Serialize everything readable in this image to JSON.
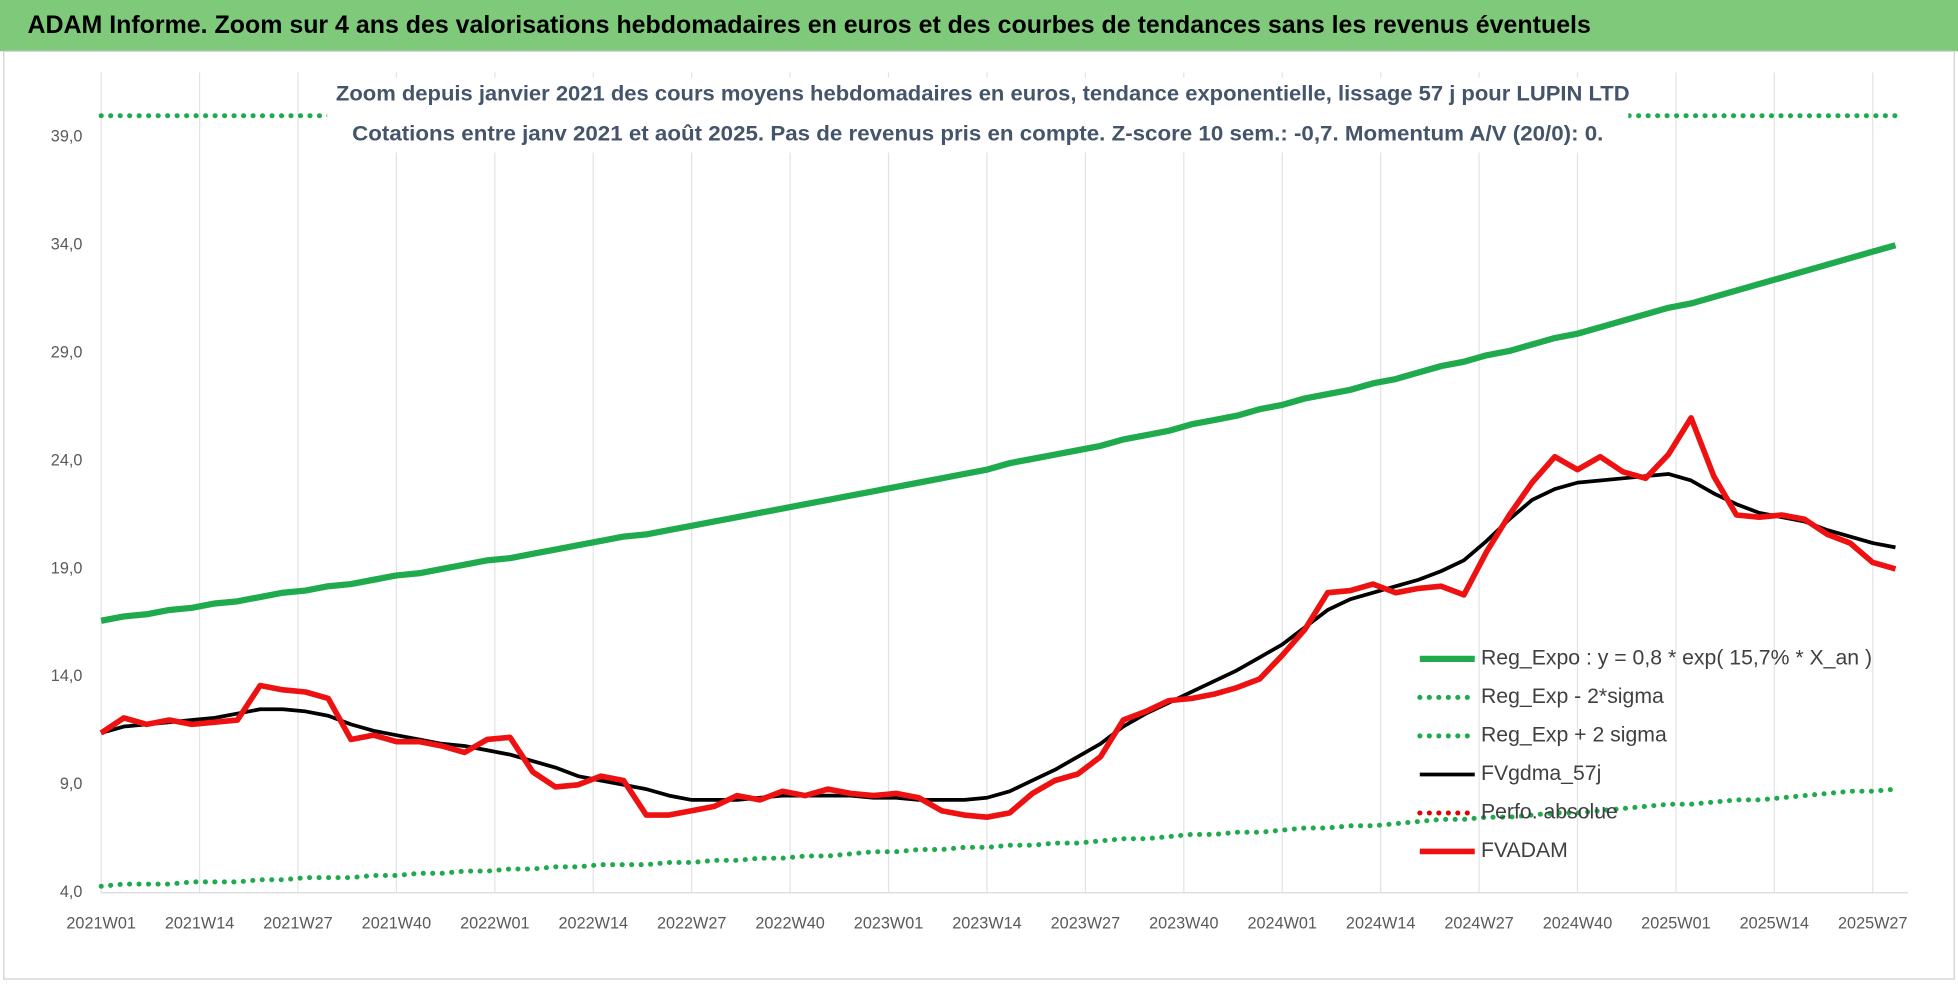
{
  "chart_data": {
    "type": "line",
    "title": "ADAM Informe. Zoom sur 4 ans des valorisations hebdomadaires en euros et des courbes de tendances sans les revenus éventuels",
    "subtitle": [
      "Zoom depuis janvier 2021 des cours moyens hebdomadaires en euros, tendance exponentielle, lissage 57 j pour LUPIN LTD",
      "Cotations entre janv 2021 et août 2025.  Pas de revenus pris en compte. Z-score 10 sem.: -0,7. Momentum A/V (20/0): 0."
    ],
    "grid": "x",
    "legend": "right",
    "xlim": [
      0,
      238
    ],
    "xticks": [
      {
        "value": 0,
        "label": "2021W01"
      },
      {
        "value": 13,
        "label": "2021W14"
      },
      {
        "value": 26,
        "label": "2021W27"
      },
      {
        "value": 39,
        "label": "2021W40"
      },
      {
        "value": 52,
        "label": "2022W01"
      },
      {
        "value": 65,
        "label": "2022W14"
      },
      {
        "value": 78,
        "label": "2022W27"
      },
      {
        "value": 91,
        "label": "2022W40"
      },
      {
        "value": 104,
        "label": "2023W01"
      },
      {
        "value": 117,
        "label": "2023W14"
      },
      {
        "value": 130,
        "label": "2023W27"
      },
      {
        "value": 143,
        "label": "2023W40"
      },
      {
        "value": 156,
        "label": "2024W01"
      },
      {
        "value": 169,
        "label": "2024W14"
      },
      {
        "value": 182,
        "label": "2024W27"
      },
      {
        "value": 195,
        "label": "2024W40"
      },
      {
        "value": 208,
        "label": "2025W01"
      },
      {
        "value": 221,
        "label": "2025W14"
      },
      {
        "value": 234,
        "label": "2025W27"
      }
    ],
    "ylim": [
      4,
      42
    ],
    "yticks": [
      {
        "value": 4,
        "label": "4,0"
      },
      {
        "value": 9,
        "label": "9,0"
      },
      {
        "value": 14,
        "label": "14,0"
      },
      {
        "value": 19,
        "label": "19,0"
      },
      {
        "value": 24,
        "label": "24,0"
      },
      {
        "value": 29,
        "label": "29,0"
      },
      {
        "value": 34,
        "label": "34,0"
      },
      {
        "value": 39,
        "label": "39,0"
      }
    ],
    "x": [
      0,
      3,
      6,
      9,
      12,
      15,
      18,
      21,
      24,
      27,
      30,
      33,
      36,
      39,
      42,
      45,
      48,
      51,
      54,
      57,
      60,
      63,
      66,
      69,
      72,
      75,
      78,
      81,
      84,
      87,
      90,
      93,
      96,
      99,
      102,
      105,
      108,
      111,
      114,
      117,
      120,
      123,
      126,
      129,
      132,
      135,
      138,
      141,
      144,
      147,
      150,
      153,
      156,
      159,
      162,
      165,
      168,
      171,
      174,
      177,
      180,
      183,
      186,
      189,
      192,
      195,
      198,
      201,
      204,
      207,
      210,
      213,
      216,
      219,
      222,
      225,
      228,
      231,
      234,
      237
    ],
    "series": [
      {
        "name": "Reg_Expo : y = 0,8 * exp( 15,7% *  X_an )",
        "color": "#1faa4e",
        "line_style": "solid",
        "values": [
          16.6,
          16.8,
          16.9,
          17.1,
          17.2,
          17.4,
          17.5,
          17.7,
          17.9,
          18.0,
          18.2,
          18.3,
          18.5,
          18.7,
          18.8,
          19.0,
          19.2,
          19.4,
          19.5,
          19.7,
          19.9,
          20.1,
          20.3,
          20.5,
          20.6,
          20.8,
          21.0,
          21.2,
          21.4,
          21.6,
          21.8,
          22.0,
          22.2,
          22.4,
          22.6,
          22.8,
          23.0,
          23.2,
          23.4,
          23.6,
          23.9,
          24.1,
          24.3,
          24.5,
          24.7,
          25.0,
          25.2,
          25.4,
          25.7,
          25.9,
          26.1,
          26.4,
          26.6,
          26.9,
          27.1,
          27.3,
          27.6,
          27.8,
          28.1,
          28.4,
          28.6,
          28.9,
          29.1,
          29.4,
          29.7,
          29.9,
          30.2,
          30.5,
          30.8,
          31.1,
          31.3,
          31.6,
          31.9,
          32.2,
          32.5,
          32.8,
          33.1,
          33.4,
          33.7,
          34.0
        ]
      },
      {
        "name": "Reg_Exp - 2*sigma",
        "color": "#1faa4e",
        "line_style": "dotted",
        "values": [
          4.3,
          4.4,
          4.4,
          4.4,
          4.5,
          4.5,
          4.5,
          4.6,
          4.6,
          4.7,
          4.7,
          4.7,
          4.8,
          4.8,
          4.9,
          4.9,
          5.0,
          5.0,
          5.1,
          5.1,
          5.2,
          5.2,
          5.3,
          5.3,
          5.3,
          5.4,
          5.4,
          5.5,
          5.5,
          5.6,
          5.6,
          5.7,
          5.7,
          5.8,
          5.9,
          5.9,
          6.0,
          6.0,
          6.1,
          6.1,
          6.2,
          6.2,
          6.3,
          6.3,
          6.4,
          6.5,
          6.5,
          6.6,
          6.7,
          6.7,
          6.8,
          6.8,
          6.9,
          7.0,
          7.0,
          7.1,
          7.1,
          7.2,
          7.3,
          7.4,
          7.4,
          7.5,
          7.5,
          7.6,
          7.7,
          7.7,
          7.8,
          7.9,
          8.0,
          8.1,
          8.1,
          8.2,
          8.3,
          8.3,
          8.4,
          8.5,
          8.6,
          8.7,
          8.7,
          8.8
        ]
      },
      {
        "name": "Reg_Exp + 2 sigma",
        "color": "#1faa4e",
        "line_style": "dotted",
        "values": [
          40,
          40,
          40,
          40,
          40,
          40,
          40,
          40,
          40,
          40,
          40,
          40,
          40,
          40,
          40,
          40,
          40,
          40,
          40,
          40,
          40,
          40,
          40,
          40,
          40,
          40,
          40,
          40,
          40,
          40,
          40,
          40,
          40,
          40,
          40,
          40,
          40,
          40,
          40,
          40,
          40,
          40,
          40,
          40,
          40,
          40,
          40,
          40,
          40,
          40,
          40,
          40,
          40,
          40,
          40,
          40,
          40,
          40,
          40,
          40,
          40,
          40,
          40,
          40,
          40,
          40,
          40,
          40,
          40,
          40,
          40,
          40,
          40,
          40,
          40,
          40,
          40,
          40,
          40,
          40
        ]
      },
      {
        "name": "FVgdma_57j",
        "color": "#000000",
        "line_style": "solid",
        "values": [
          11.4,
          11.7,
          11.8,
          11.9,
          12.0,
          12.1,
          12.3,
          12.5,
          12.5,
          12.4,
          12.2,
          11.8,
          11.5,
          11.3,
          11.1,
          10.9,
          10.8,
          10.6,
          10.4,
          10.1,
          9.8,
          9.4,
          9.2,
          9.0,
          8.8,
          8.5,
          8.3,
          8.3,
          8.3,
          8.4,
          8.5,
          8.5,
          8.5,
          8.5,
          8.4,
          8.4,
          8.3,
          8.3,
          8.3,
          8.4,
          8.7,
          9.2,
          9.7,
          10.3,
          10.9,
          11.7,
          12.3,
          12.8,
          13.3,
          13.8,
          14.3,
          14.9,
          15.5,
          16.3,
          17.1,
          17.6,
          17.9,
          18.2,
          18.5,
          18.9,
          19.4,
          20.3,
          21.3,
          22.2,
          22.7,
          23.0,
          23.1,
          23.2,
          23.3,
          23.4,
          23.1,
          22.5,
          22.0,
          21.6,
          21.4,
          21.2,
          20.8,
          20.5,
          20.2,
          20.0
        ]
      },
      {
        "name": "Perfo. absolue",
        "color": "#e00000",
        "line_style": "dotted",
        "values": [
          null,
          null,
          null,
          null,
          null,
          null,
          null,
          null,
          null,
          null,
          null,
          null,
          null,
          null,
          null,
          null,
          null,
          null,
          null,
          null,
          null,
          null,
          null,
          null,
          null,
          null,
          null,
          null,
          null,
          null,
          null,
          null,
          null,
          null,
          null,
          null,
          null,
          null,
          null,
          null,
          null,
          null,
          null,
          null,
          null,
          null,
          null,
          null,
          null,
          null,
          null,
          null,
          null,
          null,
          null,
          null,
          null,
          null,
          null,
          null,
          null,
          null,
          null,
          null,
          null,
          null,
          null,
          null,
          null,
          null,
          null,
          null,
          null,
          null,
          null,
          null,
          null,
          null,
          null,
          null
        ]
      },
      {
        "name": "FVADAM",
        "color": "#ee1111",
        "line_style": "thick",
        "values": [
          11.4,
          12.1,
          11.8,
          12.0,
          11.8,
          11.9,
          12.0,
          13.6,
          13.4,
          13.3,
          13.0,
          11.1,
          11.3,
          11.0,
          11.0,
          10.8,
          10.5,
          11.1,
          11.2,
          9.6,
          8.9,
          9.0,
          9.4,
          9.2,
          7.6,
          7.6,
          7.8,
          8.0,
          8.5,
          8.3,
          8.7,
          8.5,
          8.8,
          8.6,
          8.5,
          8.6,
          8.4,
          7.8,
          7.6,
          7.5,
          7.7,
          8.6,
          9.2,
          9.5,
          10.3,
          12.0,
          12.4,
          12.9,
          13.0,
          13.2,
          13.5,
          13.9,
          15.0,
          16.2,
          17.9,
          18.0,
          18.3,
          17.9,
          18.1,
          18.2,
          17.8,
          19.8,
          21.5,
          23.0,
          24.2,
          23.6,
          24.2,
          23.5,
          23.2,
          24.3,
          26.0,
          23.3,
          21.5,
          21.4,
          21.5,
          21.3,
          20.6,
          20.2,
          19.3,
          19.0
        ]
      }
    ]
  }
}
